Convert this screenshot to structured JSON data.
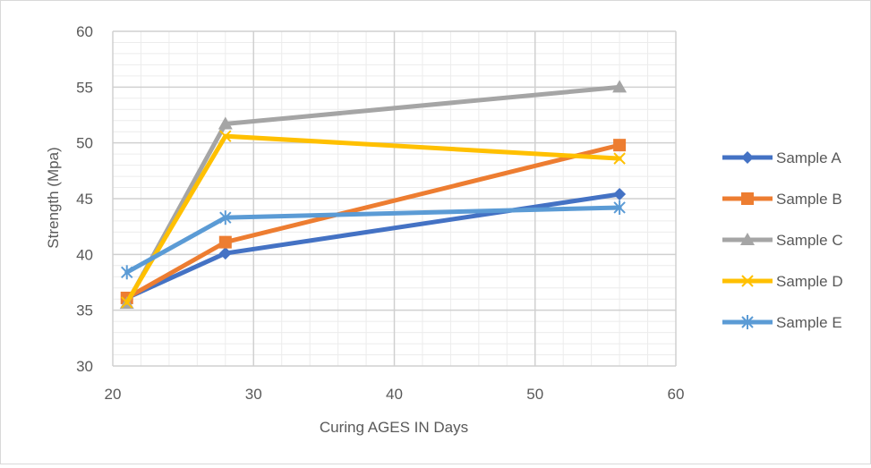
{
  "chart_data": {
    "type": "line",
    "title": "",
    "xlabel": "Curing AGES IN Days",
    "ylabel": "Strength (Mpa)",
    "xlim": [
      20,
      60
    ],
    "ylim": [
      30,
      60
    ],
    "x_ticks": [
      20,
      30,
      40,
      50,
      60
    ],
    "y_ticks": [
      30,
      35,
      40,
      45,
      50,
      55,
      60
    ],
    "x_tick_labels": [
      "20",
      "30",
      "40",
      "50",
      "60"
    ],
    "y_tick_labels": [
      "30",
      "35",
      "40",
      "45",
      "50",
      "55",
      "60"
    ],
    "grid": true,
    "minor_grid": true,
    "legend_position": "right",
    "series": [
      {
        "name": "Sample A",
        "color": "#4472c4",
        "marker": "diamond",
        "x": [
          21,
          28,
          56
        ],
        "y": [
          36.1,
          40.1,
          45.4
        ]
      },
      {
        "name": "Sample B",
        "color": "#ed7d31",
        "marker": "square",
        "x": [
          21,
          28,
          56
        ],
        "y": [
          36.1,
          41.1,
          49.8
        ]
      },
      {
        "name": "Sample C",
        "color": "#a5a5a5",
        "marker": "triangle",
        "x": [
          21,
          28,
          56
        ],
        "y": [
          35.6,
          51.7,
          55.0
        ]
      },
      {
        "name": "Sample D",
        "color": "#ffc000",
        "marker": "x",
        "x": [
          21,
          28,
          56
        ],
        "y": [
          35.7,
          50.6,
          48.6
        ]
      },
      {
        "name": "Sample E",
        "color": "#5b9bd5",
        "marker": "star",
        "x": [
          21,
          28,
          56
        ],
        "y": [
          38.4,
          43.3,
          44.2
        ]
      }
    ]
  }
}
